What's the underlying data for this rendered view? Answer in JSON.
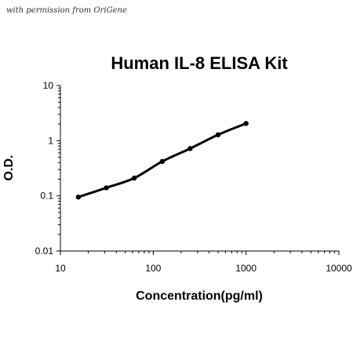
{
  "watermark": "with permission from OriGene",
  "chart_data": {
    "type": "line",
    "title": "Human IL-8 ELISA Kit",
    "xlabel": "Concentration(pg/ml)",
    "ylabel": "O.D.",
    "xscale": "log",
    "yscale": "log",
    "xlim": [
      10,
      10000
    ],
    "ylim": [
      0.01,
      10
    ],
    "x_ticks": [
      "10",
      "100",
      "1000",
      "10000"
    ],
    "y_ticks": [
      "0.01",
      "0.1",
      "1",
      "10"
    ],
    "grid": false,
    "legend": "none",
    "series": [
      {
        "x": [
          15.6,
          31.25,
          62.5,
          125,
          250,
          500,
          1000
        ],
        "y": [
          0.095,
          0.14,
          0.21,
          0.42,
          0.72,
          1.28,
          2.05
        ],
        "color": "#000000"
      }
    ]
  }
}
